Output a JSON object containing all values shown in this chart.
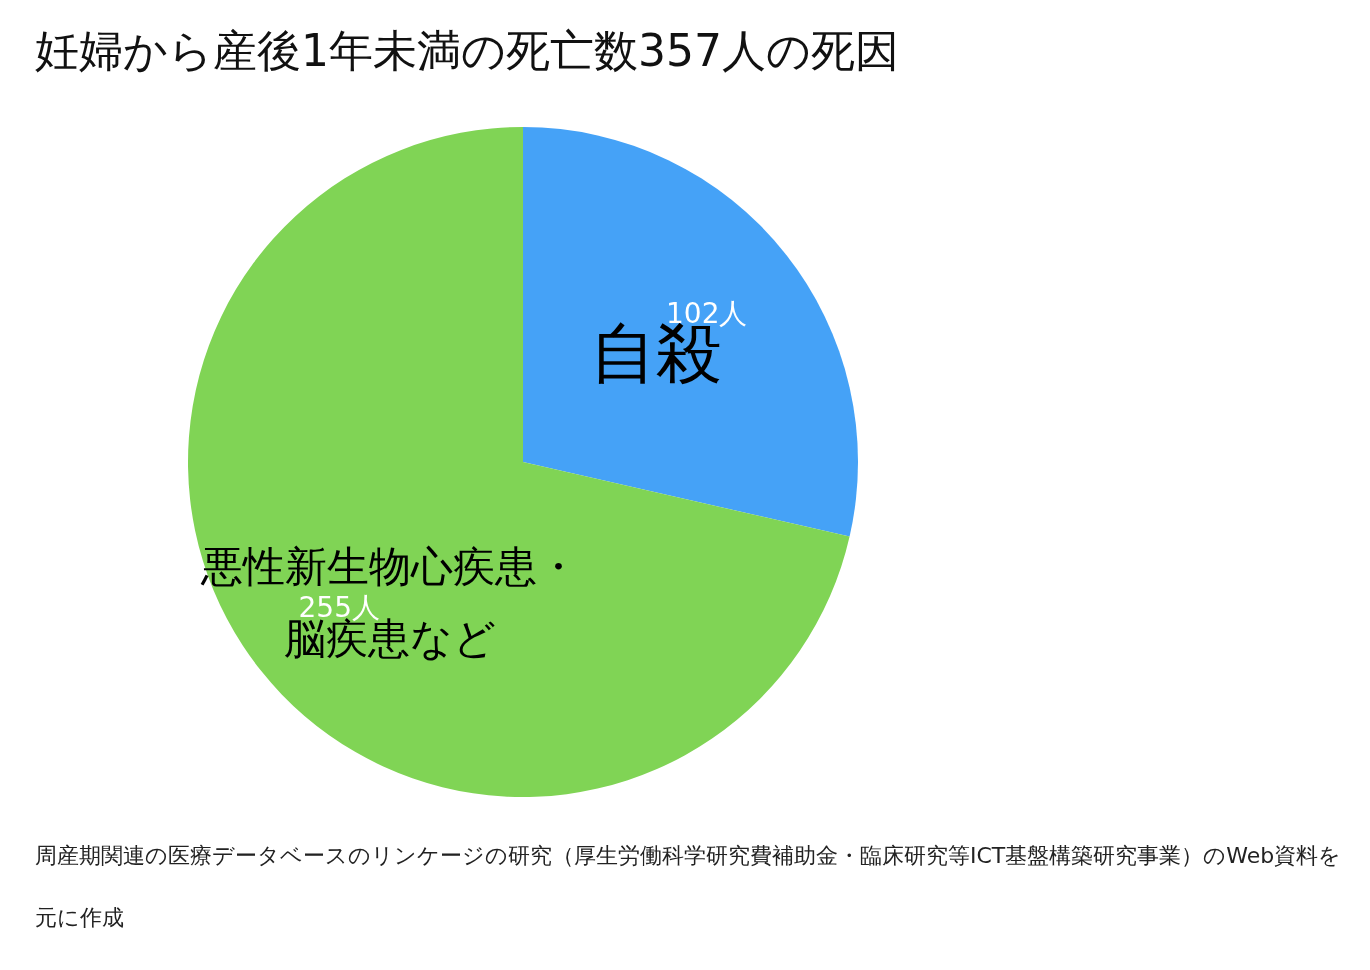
{
  "chart_data": {
    "type": "pie",
    "title": "妊婦から産後1年未満の死亡数357人の死因",
    "categories": [
      "自殺",
      "悪性新生物心疾患・脳疾患など"
    ],
    "values": [
      102,
      255
    ],
    "value_labels": [
      "102人",
      "255人"
    ],
    "colors": [
      "#45a2f7",
      "#80d455"
    ],
    "annotations": [
      "周産期関連の医療データベースのリンケージの研究（厚生労働科学研究費補助金・臨床研究等ICT基盤構築研究事業）のWeb資料を元に作成"
    ]
  }
}
